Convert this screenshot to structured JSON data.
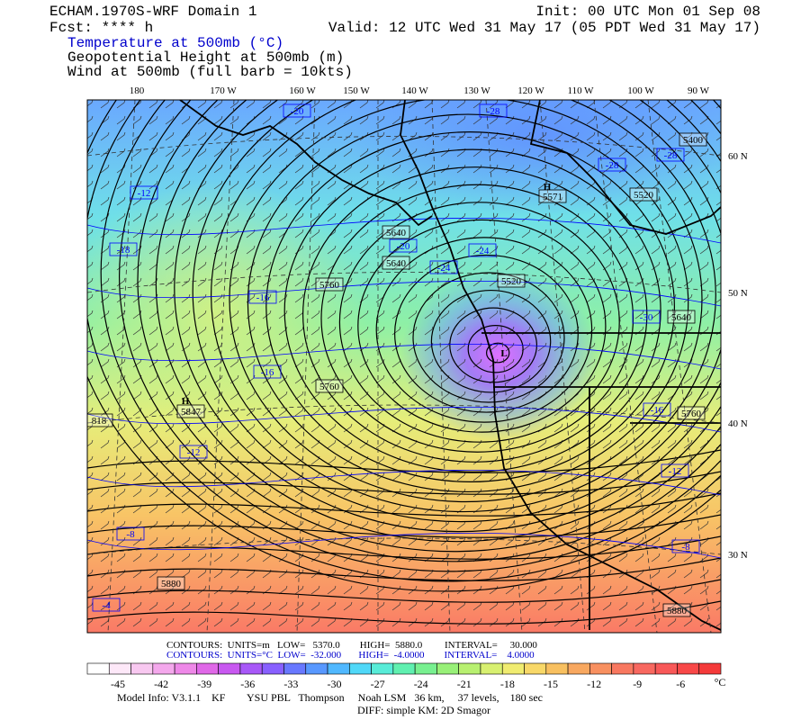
{
  "header": {
    "title": "ECHAM.1970S-WRF Domain 1",
    "init": "Init: 00 UTC Mon 01 Sep 08",
    "fcst": "Fcst: **** h",
    "valid": "Valid: 12 UTC Wed 31 May 17 (05 PDT Wed 31 May 17)",
    "fields": [
      "Temperature at 500mb (°C)",
      "Geopotential Height at 500mb (m)",
      "Wind at 500mb (full barb = 10kts)"
    ]
  },
  "lon_labels": [
    "180",
    "170 W",
    "160 W",
    "150 W",
    "140 W",
    "130 W",
    "120 W",
    "110 W",
    "100 W",
    "90 W"
  ],
  "lat_labels": [
    "60 N",
    "50 N",
    "40 N",
    "30 N"
  ],
  "map_labels": [
    "-20",
    "-28",
    "5400",
    "-28",
    "-28",
    "H",
    "5571",
    "5520",
    "-12",
    "5640",
    "-20",
    "5640",
    "-24",
    "-24",
    "-18",
    "5520",
    "5760",
    "-16",
    "-30",
    "5640",
    "L",
    "-16",
    "5760",
    "H",
    "5847",
    "-16",
    "5760",
    "818",
    "-12",
    "-12",
    "-8",
    "-8",
    "5880",
    "-4",
    "5880"
  ],
  "footer": {
    "height_contours": "CONTOURS:  UNITS=m   LOW=   5370.0        HIGH=  5880.0         INTERVAL=     30.000",
    "temp_contours": "CONTOURS:  UNITS=°C  LOW=  -32.000       HIGH=  -4.0000        INTERVAL=    4.0000",
    "model_info": "Model Info: V3.1.1    KF        YSU PBL   Thompson     Noah LSM   36 km,     37 levels,    180 sec",
    "diff": "DIFF: simple KM: 2D Smagor"
  },
  "colorbar": {
    "labels": [
      "-45",
      "-42",
      "-39",
      "-36",
      "-33",
      "-30",
      "-27",
      "-24",
      "-21",
      "-18",
      "-15",
      "-12",
      "-9",
      "-6"
    ],
    "unit": "°C"
  }
}
